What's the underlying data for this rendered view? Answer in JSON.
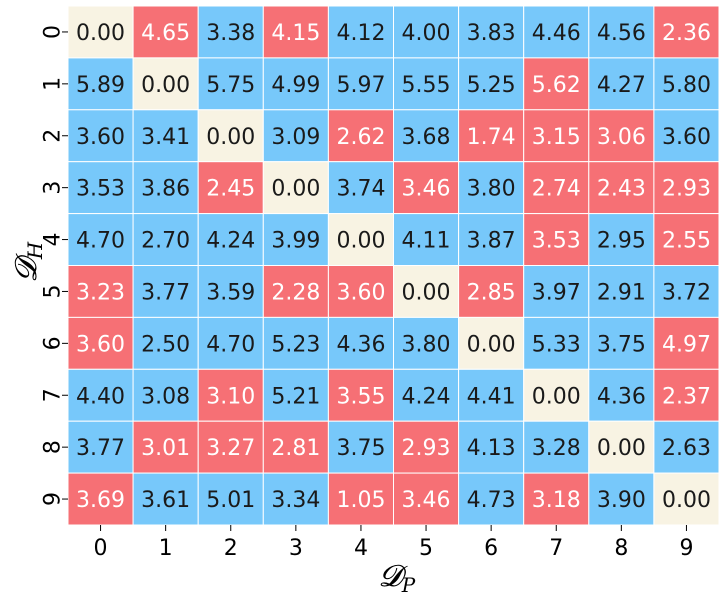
{
  "chart_data": {
    "type": "heatmap",
    "xlabel": "𝓓",
    "xlabel_subscript": "P",
    "ylabel": "𝓓",
    "ylabel_subscript": "H",
    "x_categories": [
      "0",
      "1",
      "2",
      "3",
      "4",
      "5",
      "6",
      "7",
      "8",
      "9"
    ],
    "y_categories": [
      "0",
      "1",
      "2",
      "3",
      "4",
      "5",
      "6",
      "7",
      "8",
      "9"
    ],
    "values": [
      [
        0.0,
        4.65,
        3.38,
        4.15,
        4.12,
        4.0,
        3.83,
        4.46,
        4.56,
        2.36
      ],
      [
        5.89,
        0.0,
        5.75,
        4.99,
        5.97,
        5.55,
        5.25,
        5.62,
        4.27,
        5.8
      ],
      [
        3.6,
        3.41,
        0.0,
        3.09,
        2.62,
        3.68,
        1.74,
        3.15,
        3.06,
        3.6
      ],
      [
        3.53,
        3.86,
        2.45,
        0.0,
        3.74,
        3.46,
        3.8,
        2.74,
        2.43,
        2.93
      ],
      [
        4.7,
        2.7,
        4.24,
        3.99,
        0.0,
        4.11,
        3.87,
        3.53,
        2.95,
        2.55
      ],
      [
        3.23,
        3.77,
        3.59,
        2.28,
        3.6,
        0.0,
        2.85,
        3.97,
        2.91,
        3.72
      ],
      [
        3.6,
        2.5,
        4.7,
        5.23,
        4.36,
        3.8,
        0.0,
        5.33,
        3.75,
        4.97
      ],
      [
        4.4,
        3.08,
        3.1,
        5.21,
        3.55,
        4.24,
        4.41,
        0.0,
        4.36,
        2.37
      ],
      [
        3.77,
        3.01,
        3.27,
        2.81,
        3.75,
        2.93,
        4.13,
        3.28,
        0.0,
        2.63
      ],
      [
        3.69,
        3.61,
        5.01,
        3.34,
        1.05,
        3.46,
        4.73,
        3.18,
        3.9,
        0.0
      ]
    ],
    "cell_category": [
      [
        "d",
        "r",
        "b",
        "r",
        "b",
        "b",
        "b",
        "b",
        "b",
        "r"
      ],
      [
        "b",
        "d",
        "b",
        "b",
        "b",
        "b",
        "b",
        "r",
        "b",
        "b"
      ],
      [
        "b",
        "b",
        "d",
        "b",
        "r",
        "b",
        "r",
        "r",
        "r",
        "b"
      ],
      [
        "b",
        "b",
        "r",
        "d",
        "b",
        "r",
        "b",
        "r",
        "r",
        "r"
      ],
      [
        "b",
        "b",
        "b",
        "b",
        "d",
        "b",
        "b",
        "r",
        "b",
        "r"
      ],
      [
        "r",
        "b",
        "b",
        "r",
        "r",
        "d",
        "r",
        "b",
        "b",
        "b"
      ],
      [
        "r",
        "b",
        "b",
        "b",
        "b",
        "b",
        "d",
        "b",
        "b",
        "r"
      ],
      [
        "b",
        "b",
        "r",
        "b",
        "r",
        "b",
        "b",
        "d",
        "b",
        "r"
      ],
      [
        "b",
        "r",
        "r",
        "r",
        "b",
        "r",
        "b",
        "b",
        "d",
        "b"
      ],
      [
        "r",
        "b",
        "b",
        "b",
        "r",
        "r",
        "b",
        "r",
        "b",
        "d"
      ]
    ],
    "colors": {
      "b": "#77c8fa",
      "r": "#f67075",
      "d": "#f8f3e3",
      "text_dark": "#1a1a1a",
      "text_light": "#ffffff",
      "gridline": "#ffffff"
    },
    "value_format_decimals": 2,
    "grid": true,
    "legend": "none"
  }
}
